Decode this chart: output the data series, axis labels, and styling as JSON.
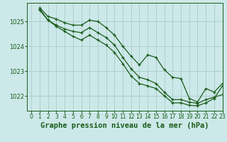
{
  "title": "Graphe pression niveau de la mer (hPa)",
  "bg_color": "#cce8e8",
  "grid_color": "#aacccc",
  "line_color": "#1a5c1a",
  "xlim": [
    -0.5,
    23
  ],
  "ylim": [
    1021.4,
    1025.75
  ],
  "yticks": [
    1022,
    1023,
    1024,
    1025
  ],
  "xticks": [
    0,
    1,
    2,
    3,
    4,
    5,
    6,
    7,
    8,
    9,
    10,
    11,
    12,
    13,
    14,
    15,
    16,
    17,
    18,
    19,
    20,
    21,
    22,
    23
  ],
  "series": [
    {
      "x": [
        1,
        2,
        3,
        4,
        5,
        6,
        7,
        8,
        9,
        10,
        11,
        12,
        13,
        14,
        15,
        16,
        17,
        18,
        19,
        20,
        21,
        22,
        23
      ],
      "y": [
        1025.55,
        1025.2,
        1025.1,
        1024.95,
        1024.85,
        1024.85,
        1025.05,
        1025.0,
        1024.75,
        1024.45,
        1024.0,
        1023.6,
        1023.25,
        1023.65,
        1023.55,
        1023.05,
        1022.75,
        1022.7,
        1021.9,
        1021.75,
        1022.3,
        1022.15,
        1022.5
      ]
    },
    {
      "x": [
        1,
        2,
        3,
        4,
        5,
        6,
        7,
        8,
        9,
        10,
        11,
        12,
        13,
        14,
        15,
        16,
        17,
        18,
        19,
        20,
        21,
        22,
        23
      ],
      "y": [
        1025.45,
        1025.05,
        1024.85,
        1024.7,
        1024.6,
        1024.55,
        1024.75,
        1024.55,
        1024.35,
        1024.05,
        1023.55,
        1023.1,
        1022.75,
        1022.65,
        1022.5,
        1022.15,
        1021.85,
        1021.85,
        1021.75,
        1021.7,
        1021.85,
        1021.95,
        1022.05
      ]
    },
    {
      "x": [
        1,
        2,
        3,
        4,
        5,
        6,
        7,
        8,
        9,
        10,
        11,
        12,
        13,
        14,
        15,
        16,
        17,
        18,
        19,
        20,
        21,
        22,
        23
      ],
      "y": [
        1025.5,
        1025.05,
        1024.8,
        1024.6,
        1024.4,
        1024.25,
        1024.45,
        1024.25,
        1024.05,
        1023.75,
        1023.3,
        1022.8,
        1022.5,
        1022.4,
        1022.3,
        1022.0,
        1021.72,
        1021.72,
        1021.62,
        1021.6,
        1021.72,
        1021.9,
        1022.4
      ]
    }
  ],
  "title_fontsize": 7.5,
  "tick_fontsize": 5.5
}
